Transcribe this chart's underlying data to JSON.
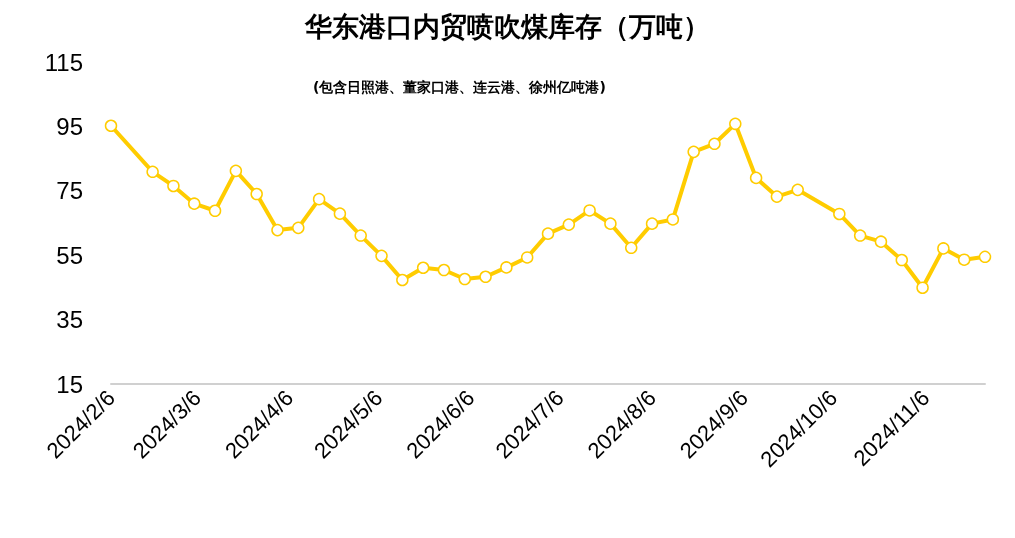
{
  "chart_data": {
    "type": "line",
    "title": "华东港口内贸喷吹煤库存（万吨）",
    "subtitle": "(包含日照港、董家口港、连云港、徐州亿吨港)",
    "x": [
      "2024-02-06",
      "2024-02-20",
      "2024-02-27",
      "2024-03-05",
      "2024-03-12",
      "2024-03-19",
      "2024-03-26",
      "2024-04-02",
      "2024-04-09",
      "2024-04-16",
      "2024-04-23",
      "2024-04-30",
      "2024-05-07",
      "2024-05-14",
      "2024-05-21",
      "2024-05-28",
      "2024-06-04",
      "2024-06-11",
      "2024-06-18",
      "2024-06-25",
      "2024-07-02",
      "2024-07-09",
      "2024-07-16",
      "2024-07-23",
      "2024-07-30",
      "2024-08-06",
      "2024-08-13",
      "2024-08-20",
      "2024-08-27",
      "2024-09-03",
      "2024-09-10",
      "2024-09-17",
      "2024-09-24",
      "2024-10-08",
      "2024-10-15",
      "2024-10-22",
      "2024-10-29",
      "2024-11-05",
      "2024-11-12",
      "2024-11-19",
      "2024-11-26"
    ],
    "series": [
      {
        "color": "#ffcc00",
        "values": [
          95.2,
          80.9,
          76.5,
          71.0,
          68.8,
          81.2,
          74.0,
          62.8,
          63.5,
          72.4,
          67.9,
          61.1,
          54.8,
          47.3,
          51.1,
          50.4,
          47.6,
          48.3,
          51.2,
          54.3,
          61.7,
          64.5,
          68.9,
          64.8,
          57.3,
          64.8,
          66.1,
          87.1,
          89.6,
          95.8,
          79.0,
          73.2,
          75.3,
          67.8,
          61.1,
          59.2,
          53.5,
          44.9,
          57.1,
          53.6,
          54.5
        ]
      }
    ],
    "xlim": [
      "2024-02-06",
      "2024-11-26"
    ],
    "xticks": [
      {
        "value": "2024-02-06",
        "label": "2024/2/6"
      },
      {
        "value": "2024-03-06",
        "label": "2024/3/6"
      },
      {
        "value": "2024-04-06",
        "label": "2024/4/6"
      },
      {
        "value": "2024-05-06",
        "label": "2024/5/6"
      },
      {
        "value": "2024-06-06",
        "label": "2024/6/6"
      },
      {
        "value": "2024-07-06",
        "label": "2024/7/6"
      },
      {
        "value": "2024-08-06",
        "label": "2024/8/6"
      },
      {
        "value": "2024-09-06",
        "label": "2024/9/6"
      },
      {
        "value": "2024-10-06",
        "label": "2024/10/6"
      },
      {
        "value": "2024-11-06",
        "label": "2024/11/6"
      }
    ],
    "ylim": [
      15,
      115
    ],
    "yticks": [
      15,
      35,
      55,
      75,
      95,
      115
    ],
    "grid": false,
    "marker": "circle",
    "line_style": "solid"
  }
}
